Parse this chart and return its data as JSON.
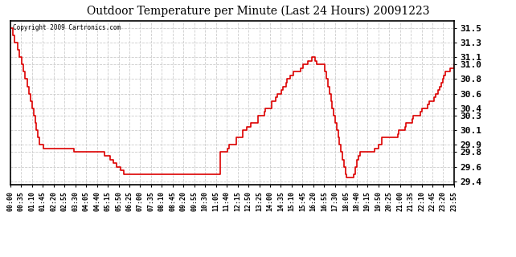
{
  "title": "Outdoor Temperature per Minute (Last 24 Hours) 20091223",
  "copyright": "Copyright 2009 Cartronics.com",
  "line_color": "#dd0000",
  "bg_color": "#ffffff",
  "grid_color": "#cccccc",
  "ylim": [
    29.35,
    31.6
  ],
  "yticks": [
    29.4,
    29.6,
    29.8,
    29.9,
    30.1,
    30.3,
    30.4,
    30.6,
    30.8,
    31.0,
    31.1,
    31.3,
    31.5
  ],
  "xtick_labels": [
    "00:00",
    "00:35",
    "01:10",
    "01:45",
    "02:20",
    "02:55",
    "03:30",
    "04:05",
    "04:40",
    "05:15",
    "05:50",
    "06:25",
    "07:00",
    "07:35",
    "08:10",
    "08:45",
    "09:20",
    "09:55",
    "10:30",
    "11:05",
    "11:40",
    "12:15",
    "12:50",
    "13:25",
    "14:00",
    "14:35",
    "15:10",
    "15:45",
    "16:20",
    "16:55",
    "17:30",
    "18:05",
    "18:40",
    "19:15",
    "19:50",
    "20:25",
    "21:00",
    "21:35",
    "22:10",
    "22:45",
    "23:20",
    "23:55"
  ],
  "temperature_data": [
    31.5,
    31.5,
    31.4,
    31.3,
    31.3,
    31.2,
    31.1,
    31.1,
    31.0,
    30.9,
    30.8,
    30.8,
    30.7,
    30.6,
    30.5,
    30.4,
    30.3,
    30.2,
    30.1,
    30.0,
    29.9,
    29.9,
    29.9,
    29.85,
    29.85,
    29.85,
    29.85,
    29.85,
    29.85,
    29.85,
    29.85,
    29.85,
    29.85,
    29.85,
    29.85,
    29.85,
    29.85,
    29.85,
    29.85,
    29.85,
    29.85,
    29.85,
    29.85,
    29.85,
    29.8,
    29.8,
    29.8,
    29.8,
    29.8,
    29.8,
    29.8,
    29.8,
    29.8,
    29.8,
    29.8,
    29.8,
    29.8,
    29.8,
    29.8,
    29.8,
    29.8,
    29.8,
    29.8,
    29.8,
    29.8,
    29.75,
    29.75,
    29.75,
    29.75,
    29.7,
    29.7,
    29.65,
    29.65,
    29.6,
    29.6,
    29.6,
    29.55,
    29.55,
    29.5,
    29.5,
    29.5,
    29.5,
    29.5,
    29.5,
    29.5,
    29.5,
    29.5,
    29.5,
    29.5,
    29.5,
    29.5,
    29.5,
    29.5,
    29.5,
    29.5,
    29.5,
    29.5,
    29.5,
    29.5,
    29.5,
    29.5,
    29.5,
    29.5,
    29.5,
    29.5,
    29.5,
    29.5,
    29.5,
    29.5,
    29.5,
    29.5,
    29.5,
    29.5,
    29.5,
    29.5,
    29.5,
    29.5,
    29.5,
    29.5,
    29.5,
    29.5,
    29.5,
    29.5,
    29.5,
    29.5,
    29.5,
    29.5,
    29.5,
    29.5,
    29.5,
    29.5,
    29.5,
    29.5,
    29.5,
    29.5,
    29.5,
    29.5,
    29.5,
    29.5,
    29.5,
    29.5,
    29.5,
    29.5,
    29.5,
    29.5,
    29.8,
    29.8,
    29.8,
    29.8,
    29.8,
    29.85,
    29.9,
    29.9,
    29.9,
    29.9,
    29.9,
    30.0,
    30.0,
    30.0,
    30.0,
    30.1,
    30.1,
    30.1,
    30.15,
    30.15,
    30.15,
    30.2,
    30.2,
    30.2,
    30.2,
    30.2,
    30.3,
    30.3,
    30.3,
    30.3,
    30.35,
    30.4,
    30.4,
    30.4,
    30.4,
    30.5,
    30.5,
    30.5,
    30.55,
    30.6,
    30.6,
    30.6,
    30.65,
    30.7,
    30.7,
    30.75,
    30.8,
    30.8,
    30.85,
    30.85,
    30.9,
    30.9,
    30.9,
    30.9,
    30.9,
    30.95,
    30.95,
    31.0,
    31.0,
    31.0,
    31.05,
    31.05,
    31.05,
    31.1,
    31.1,
    31.05,
    31.0,
    31.0,
    31.0,
    31.0,
    31.0,
    31.0,
    30.9,
    30.8,
    30.7,
    30.6,
    30.5,
    30.4,
    30.3,
    30.2,
    30.1,
    30.0,
    29.9,
    29.8,
    29.7,
    29.6,
    29.5,
    29.45,
    29.45,
    29.45,
    29.45,
    29.45,
    29.5,
    29.6,
    29.7,
    29.75,
    29.8,
    29.8,
    29.8,
    29.8,
    29.8,
    29.8,
    29.8,
    29.8,
    29.8,
    29.8,
    29.85,
    29.85,
    29.85,
    29.9,
    29.9,
    30.0,
    30.0,
    30.0,
    30.0,
    30.0,
    30.0,
    30.0,
    30.0,
    30.0,
    30.0,
    30.0,
    30.05,
    30.1,
    30.1,
    30.1,
    30.1,
    30.15,
    30.2,
    30.2,
    30.2,
    30.2,
    30.25,
    30.3,
    30.3,
    30.3,
    30.3,
    30.3,
    30.35,
    30.4,
    30.4,
    30.4,
    30.4,
    30.45,
    30.5,
    30.5,
    30.5,
    30.55,
    30.6,
    30.6,
    30.65,
    30.7,
    30.75,
    30.8,
    30.85,
    30.9,
    30.9,
    30.9,
    30.95,
    30.95,
    30.95,
    31.0
  ]
}
